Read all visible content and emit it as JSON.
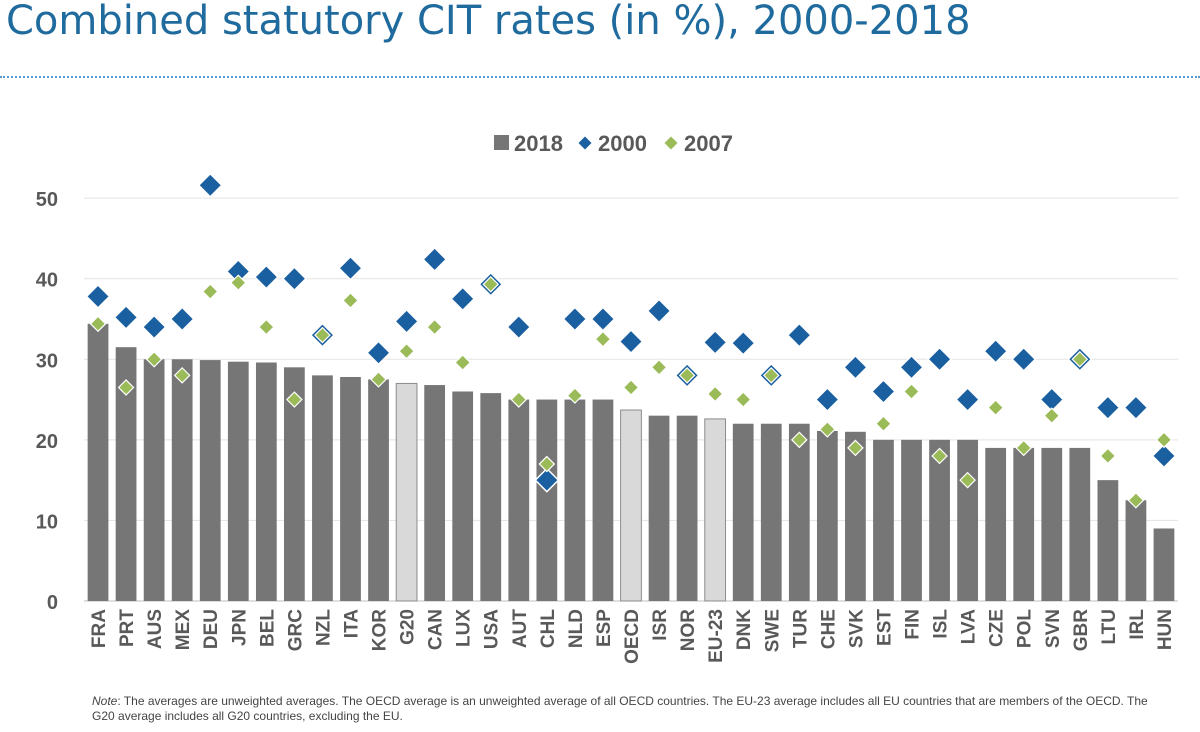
{
  "title": "Combined statutory CIT rates (in %), 2000-2018",
  "note": {
    "label": "Note",
    "text": ": The averages are unweighted averages. The OECD average is an unweighted average of all OECD countries. The EU-23 average includes all EU countries that are members of the OECD. The G20 average includes all G20 countries, excluding the EU."
  },
  "colors": {
    "bar": "#767676",
    "bar_highlight": "#d9d9d9",
    "marker_2000": "#1a5fa0",
    "marker_2007": "#9bbb59",
    "title": "#1f6b9e"
  },
  "chart_data": {
    "type": "bar",
    "title": "Combined statutory CIT rates (in %), 2000-2018",
    "ylim": [
      0,
      52
    ],
    "yticks": [
      0,
      10,
      20,
      30,
      40,
      50
    ],
    "legend": {
      "position": "top-center",
      "entries": [
        "2018",
        "2000",
        "2007"
      ]
    },
    "highlighted_categories": [
      "G20",
      "OECD",
      "EU-23"
    ],
    "categories": [
      "FRA",
      "PRT",
      "AUS",
      "MEX",
      "DEU",
      "JPN",
      "BEL",
      "GRC",
      "NZL",
      "ITA",
      "KOR",
      "G20",
      "CAN",
      "LUX",
      "USA",
      "AUT",
      "CHL",
      "NLD",
      "ESP",
      "OECD",
      "ISR",
      "NOR",
      "EU-23",
      "DNK",
      "SWE",
      "TUR",
      "CHE",
      "SVK",
      "EST",
      "FIN",
      "ISL",
      "LVA",
      "CZE",
      "POL",
      "SVN",
      "GBR",
      "LTU",
      "IRL",
      "HUN"
    ],
    "series": [
      {
        "name": "2018",
        "kind": "bar",
        "values": [
          34.4,
          31.5,
          30,
          30,
          29.9,
          29.7,
          29.6,
          29,
          28,
          27.8,
          27.5,
          27,
          26.8,
          26,
          25.8,
          25,
          25,
          25,
          25,
          23.7,
          23,
          23,
          22.6,
          22,
          22,
          22,
          21.1,
          21,
          20,
          20,
          20,
          20,
          19,
          19,
          19,
          19,
          15,
          12.5,
          9
        ]
      },
      {
        "name": "2000",
        "kind": "marker",
        "values": [
          37.8,
          35.2,
          34,
          35,
          51.6,
          40.9,
          40.2,
          40,
          33,
          41.3,
          30.8,
          34.7,
          42.4,
          37.5,
          39.3,
          34,
          15,
          35,
          35,
          32.2,
          36,
          28,
          32.1,
          32,
          28,
          33,
          25,
          29,
          26,
          29,
          30,
          25,
          31,
          30,
          25,
          30,
          24,
          24,
          18
        ]
      },
      {
        "name": "2007",
        "kind": "marker",
        "values": [
          34.4,
          26.5,
          30,
          28,
          38.4,
          39.5,
          34,
          25,
          33,
          37.3,
          27.5,
          31,
          34,
          29.6,
          39.3,
          25,
          17,
          25.5,
          32.5,
          26.5,
          29,
          28,
          25.7,
          25,
          28,
          20,
          21.3,
          19,
          22,
          26,
          18,
          15,
          24,
          19,
          23,
          30,
          18,
          12.5,
          20
        ]
      }
    ]
  }
}
